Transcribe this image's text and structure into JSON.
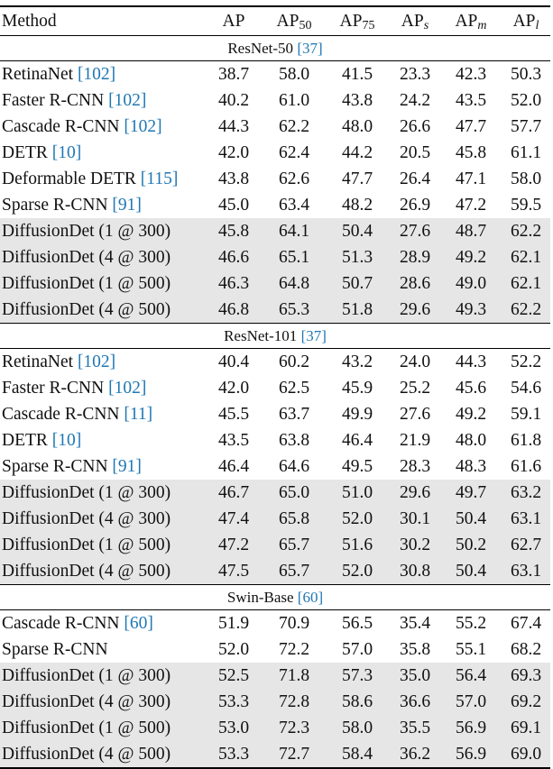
{
  "header": {
    "method": "Method",
    "ap": "AP",
    "ap50_base": "AP",
    "ap50_sub": "50",
    "ap75_base": "AP",
    "ap75_sub": "75",
    "aps_base": "AP",
    "aps_sub": "s",
    "apm_base": "AP",
    "apm_sub": "m",
    "apl_base": "AP",
    "apl_sub": "l"
  },
  "sections": [
    {
      "label": "ResNet-50",
      "cite": "[37]",
      "rows": [
        {
          "method": "RetinaNet ",
          "cite": "[102]",
          "v": [
            "38.7",
            "58.0",
            "41.5",
            "23.3",
            "42.3",
            "50.3"
          ]
        },
        {
          "method": "Faster R-CNN ",
          "cite": "[102]",
          "v": [
            "40.2",
            "61.0",
            "43.8",
            "24.2",
            "43.5",
            "52.0"
          ]
        },
        {
          "method": "Cascade R-CNN ",
          "cite": "[102]",
          "v": [
            "44.3",
            "62.2",
            "48.0",
            "26.6",
            "47.7",
            "57.7"
          ]
        },
        {
          "method": "DETR ",
          "cite": "[10]",
          "v": [
            "42.0",
            "62.4",
            "44.2",
            "20.5",
            "45.8",
            "61.1"
          ]
        },
        {
          "method": "Deformable DETR ",
          "cite": "[115]",
          "v": [
            "43.8",
            "62.6",
            "47.7",
            "26.4",
            "47.1",
            "58.0"
          ]
        },
        {
          "method": "Sparse R-CNN ",
          "cite": "[91]",
          "v": [
            "45.0",
            "63.4",
            "48.2",
            "26.9",
            "47.2",
            "59.5"
          ]
        },
        {
          "method": "DiffusionDet (1 @ 300)",
          "cite": "",
          "v": [
            "45.8",
            "64.1",
            "50.4",
            "27.6",
            "48.7",
            "62.2"
          ]
        },
        {
          "method": "DiffusionDet (4 @ 300)",
          "cite": "",
          "v": [
            "46.6",
            "65.1",
            "51.3",
            "28.9",
            "49.2",
            "62.1"
          ]
        },
        {
          "method": "DiffusionDet (1 @ 500)",
          "cite": "",
          "v": [
            "46.3",
            "64.8",
            "50.7",
            "28.6",
            "49.0",
            "62.1"
          ]
        },
        {
          "method": "DiffusionDet (4 @ 500)",
          "cite": "",
          "v": [
            "46.8",
            "65.3",
            "51.8",
            "29.6",
            "49.3",
            "62.2"
          ]
        }
      ]
    },
    {
      "label": "ResNet-101",
      "cite": "[37]",
      "rows": [
        {
          "method": "RetinaNet ",
          "cite": "[102]",
          "v": [
            "40.4",
            "60.2",
            "43.2",
            "24.0",
            "44.3",
            "52.2"
          ]
        },
        {
          "method": "Faster R-CNN ",
          "cite": "[102]",
          "v": [
            "42.0",
            "62.5",
            "45.9",
            "25.2",
            "45.6",
            "54.6"
          ]
        },
        {
          "method": "Cascade R-CNN ",
          "cite": "[11]",
          "v": [
            "45.5",
            "63.7",
            "49.9",
            "27.6",
            "49.2",
            "59.1"
          ]
        },
        {
          "method": "DETR ",
          "cite": "[10]",
          "v": [
            "43.5",
            "63.8",
            "46.4",
            "21.9",
            "48.0",
            "61.8"
          ]
        },
        {
          "method": "Sparse R-CNN ",
          "cite": "[91]",
          "v": [
            "46.4",
            "64.6",
            "49.5",
            "28.3",
            "48.3",
            "61.6"
          ]
        },
        {
          "method": "DiffusionDet (1 @ 300)",
          "cite": "",
          "v": [
            "46.7",
            "65.0",
            "51.0",
            "29.6",
            "49.7",
            "63.2"
          ]
        },
        {
          "method": "DiffusionDet (4 @ 300)",
          "cite": "",
          "v": [
            "47.4",
            "65.8",
            "52.0",
            "30.1",
            "50.4",
            "63.1"
          ]
        },
        {
          "method": "DiffusionDet (1 @ 500)",
          "cite": "",
          "v": [
            "47.2",
            "65.7",
            "51.6",
            "30.2",
            "50.2",
            "62.7"
          ]
        },
        {
          "method": "DiffusionDet (4 @ 500)",
          "cite": "",
          "v": [
            "47.5",
            "65.7",
            "52.0",
            "30.8",
            "50.4",
            "63.1"
          ]
        }
      ]
    },
    {
      "label": "Swin-Base",
      "cite": "[60]",
      "rows": [
        {
          "method": "Cascade R-CNN ",
          "cite": "[60]",
          "v": [
            "51.9",
            "70.9",
            "56.5",
            "35.4",
            "55.2",
            "67.4"
          ]
        },
        {
          "method": "Sparse R-CNN",
          "cite": "",
          "v": [
            "52.0",
            "72.2",
            "57.0",
            "35.8",
            "55.1",
            "68.2"
          ]
        },
        {
          "method": "DiffusionDet (1 @ 300)",
          "cite": "",
          "v": [
            "52.5",
            "71.8",
            "57.3",
            "35.0",
            "56.4",
            "69.3"
          ]
        },
        {
          "method": "DiffusionDet (4 @ 300)",
          "cite": "",
          "v": [
            "53.3",
            "72.8",
            "58.6",
            "36.6",
            "57.0",
            "69.2"
          ]
        },
        {
          "method": "DiffusionDet (1 @ 500)",
          "cite": "",
          "v": [
            "53.0",
            "72.3",
            "58.0",
            "35.5",
            "56.9",
            "69.1"
          ]
        },
        {
          "method": "DiffusionDet (4 @ 500)",
          "cite": "",
          "v": [
            "53.3",
            "72.7",
            "58.4",
            "36.2",
            "56.9",
            "69.0"
          ]
        }
      ]
    }
  ],
  "colors": {
    "citation": "#1f77b4",
    "highlight_row": "#e6e6e6"
  }
}
